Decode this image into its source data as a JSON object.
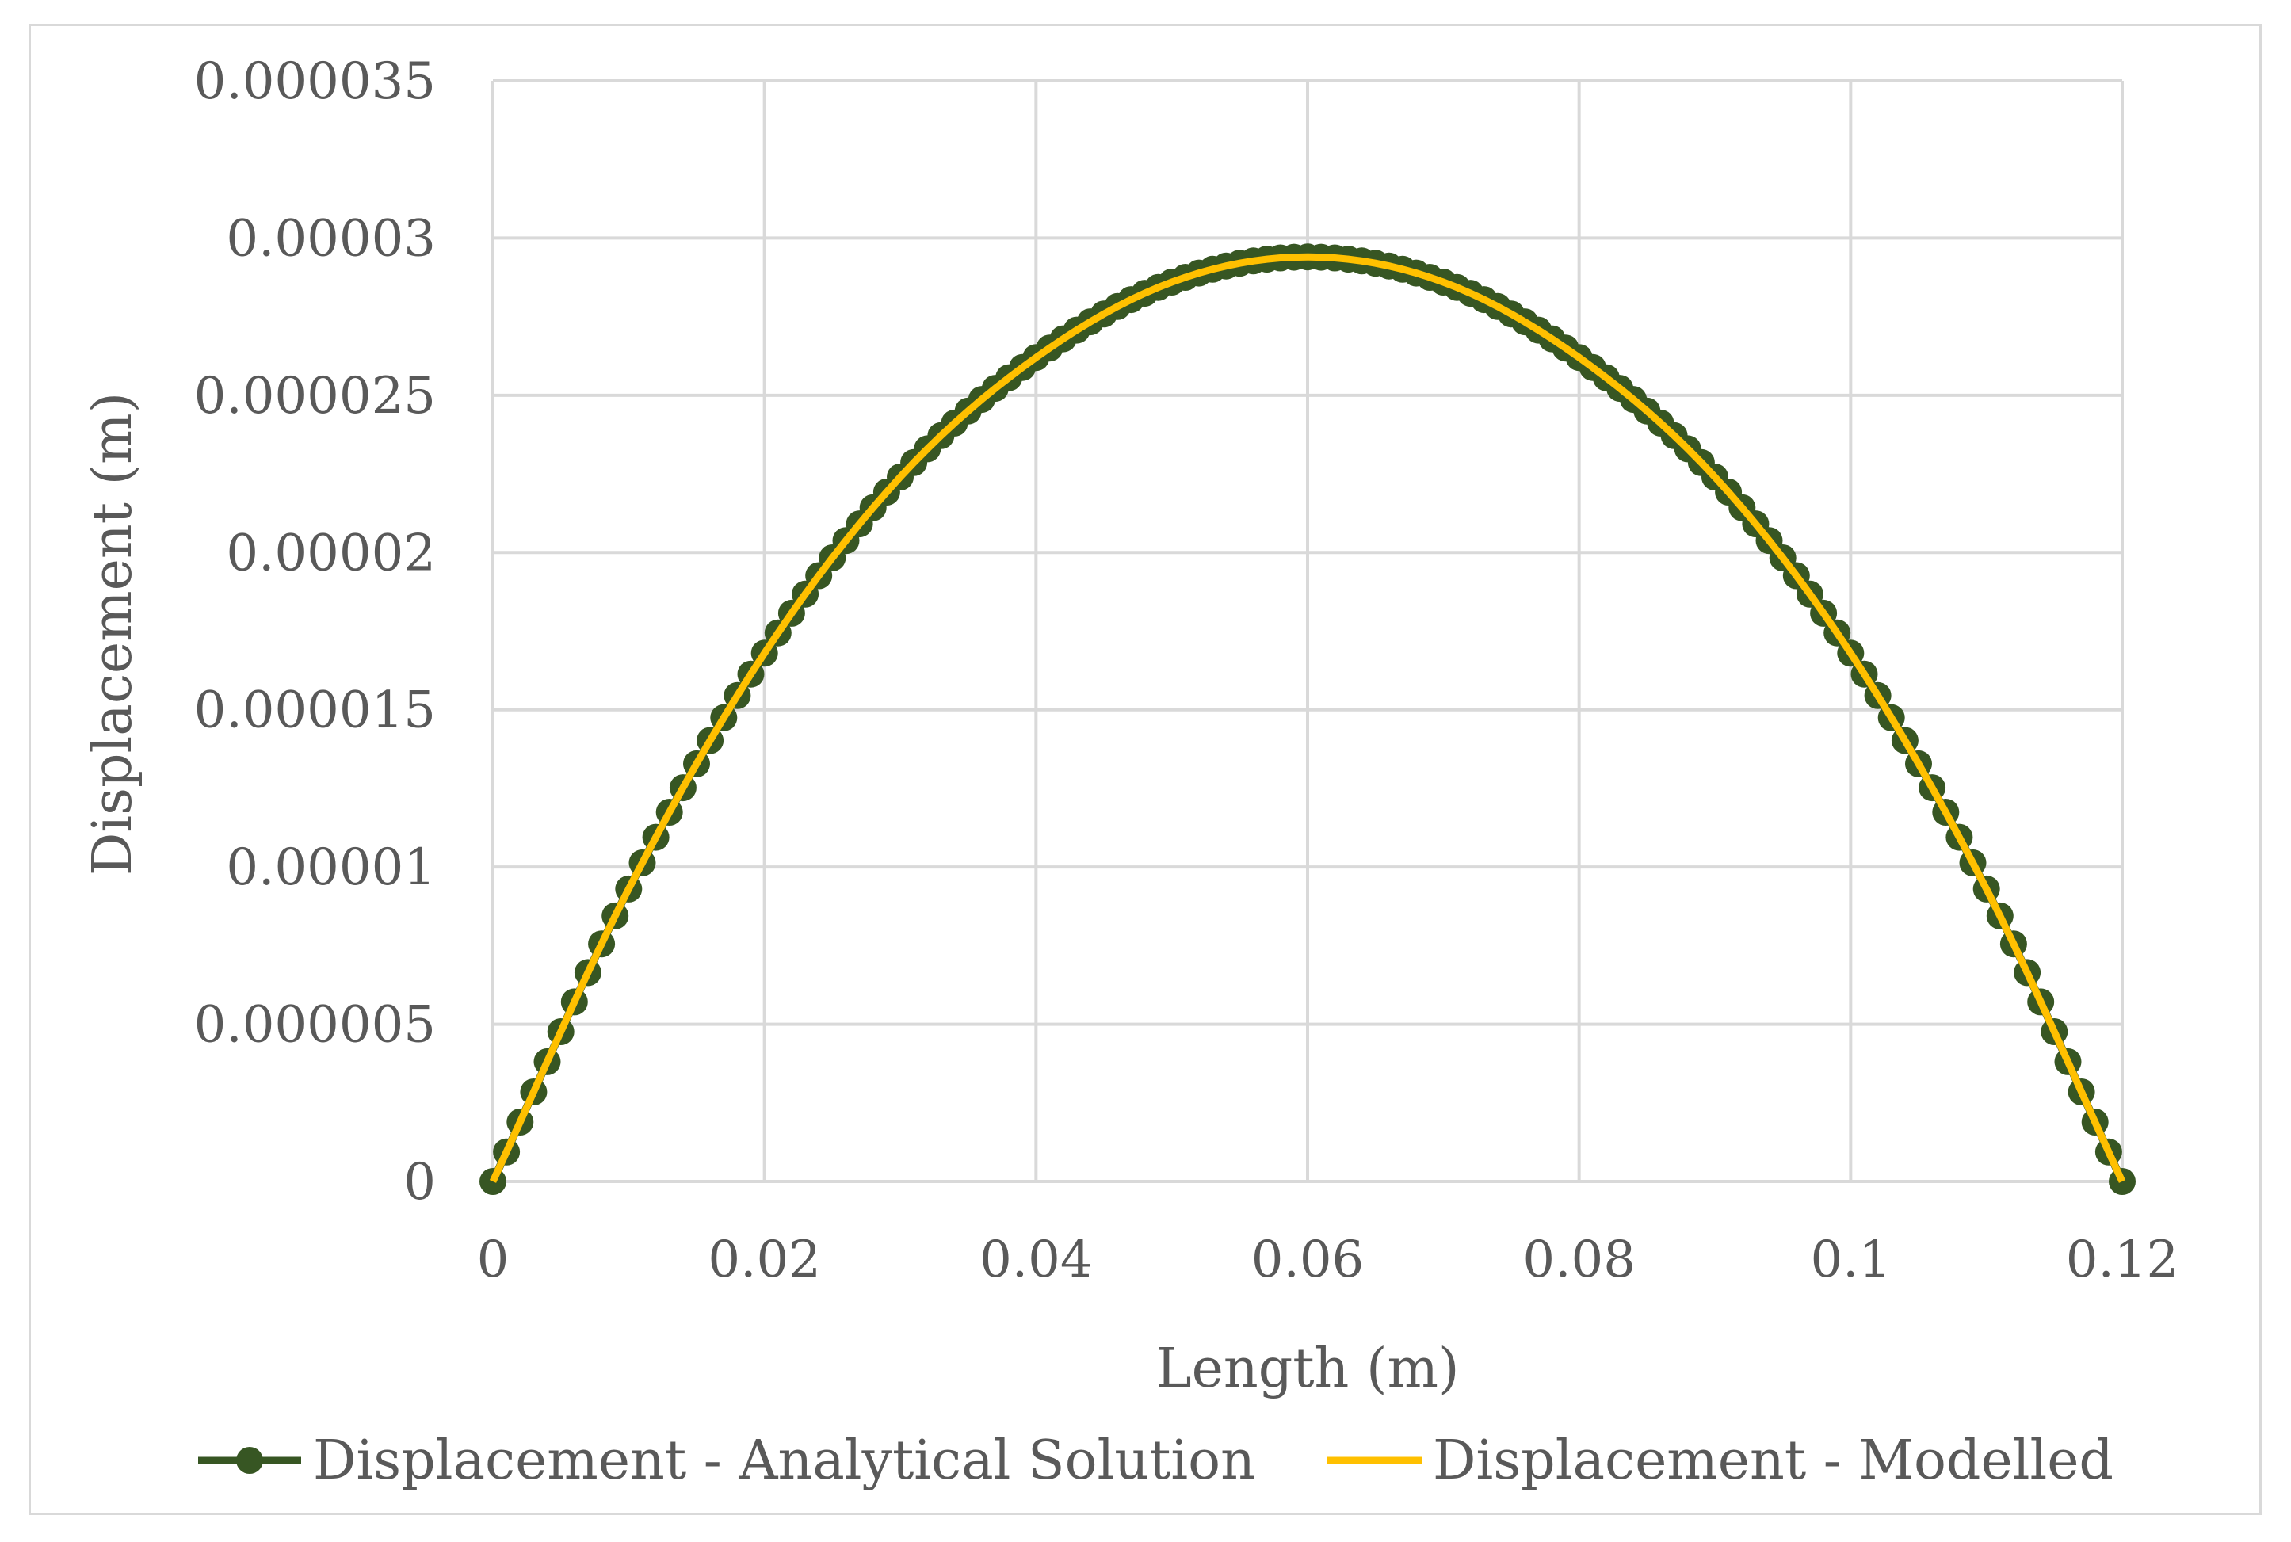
{
  "chart_data": {
    "type": "line",
    "title": "",
    "xlabel": "Length (m)",
    "ylabel": "Displacement (m)",
    "xlim": [
      0,
      0.12
    ],
    "ylim": [
      0,
      3.5e-05
    ],
    "x_ticks": [
      "0",
      "0.02",
      "0.04",
      "0.06",
      "0.08",
      "0.1",
      "0.12"
    ],
    "x_tick_values": [
      0,
      0.02,
      0.04,
      0.06,
      0.08,
      0.1,
      0.12
    ],
    "y_ticks": [
      "0",
      "0.000005",
      "0.00001",
      "0.000015",
      "0.00002",
      "0.000025",
      "0.00003",
      "0.000035"
    ],
    "y_tick_values": [
      0,
      5e-06,
      1e-05,
      1.5e-05,
      2e-05,
      2.5e-05,
      3e-05,
      3.5e-05
    ],
    "grid": true,
    "legend_position": "bottom",
    "series": [
      {
        "name": "Displacement - Analytical Solution",
        "color": "#375623",
        "marker": "circle",
        "x": [
          0,
          0.01,
          0.02,
          0.03,
          0.04,
          0.05,
          0.06,
          0.07,
          0.08,
          0.09,
          0.1,
          0.11,
          0.12
        ],
        "y": [
          0,
          9.3e-06,
          1.68e-05,
          2.24e-05,
          2.62e-05,
          2.86e-05,
          2.94e-05,
          2.86e-05,
          2.62e-05,
          2.24e-05,
          1.68e-05,
          9.3e-06,
          0
        ]
      },
      {
        "name": "Displacement - Modelled",
        "color": "#ffc000",
        "marker": "none",
        "x": [
          0,
          0.01,
          0.02,
          0.03,
          0.04,
          0.05,
          0.06,
          0.07,
          0.08,
          0.09,
          0.1,
          0.11,
          0.12
        ],
        "y": [
          0,
          9.3e-06,
          1.68e-05,
          2.24e-05,
          2.62e-05,
          2.86e-05,
          2.94e-05,
          2.86e-05,
          2.62e-05,
          2.24e-05,
          1.68e-05,
          9.3e-06,
          0
        ]
      }
    ]
  }
}
